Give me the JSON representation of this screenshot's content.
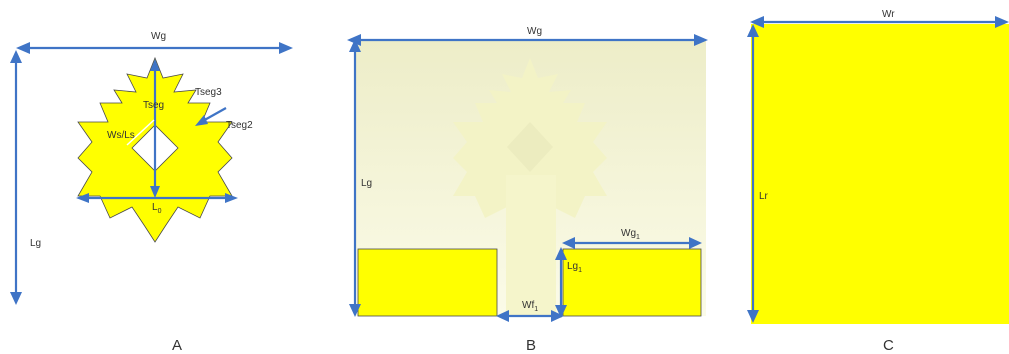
{
  "colors": {
    "fill": "#ffff00",
    "fill_stroke": "#4a4a4a",
    "arrow": "#3f74c6",
    "ground_light": "#f7f7d3",
    "ground_pale": "#efefc0",
    "text": "#333333"
  },
  "panels": {
    "a": {
      "letter": "A",
      "labels": {
        "wg": "Wg",
        "lg": "Lg",
        "tseg": "Tseg",
        "tseg3": "Tseg3",
        "tseg2": "Tseg2",
        "wsls": "Ws/Ls",
        "l0": "L",
        "l0_sub": "0"
      }
    },
    "b": {
      "letter": "B",
      "labels": {
        "wg": "Wg",
        "lg": "Lg",
        "wg1": "Wg",
        "wg1_sub": "1",
        "lg1": "Lg",
        "lg1_sub": "1",
        "wf1": "Wf",
        "wf1_sub": "1"
      }
    },
    "c": {
      "letter": "C",
      "labels": {
        "wr": "Wr",
        "lr": "Lr"
      }
    }
  }
}
